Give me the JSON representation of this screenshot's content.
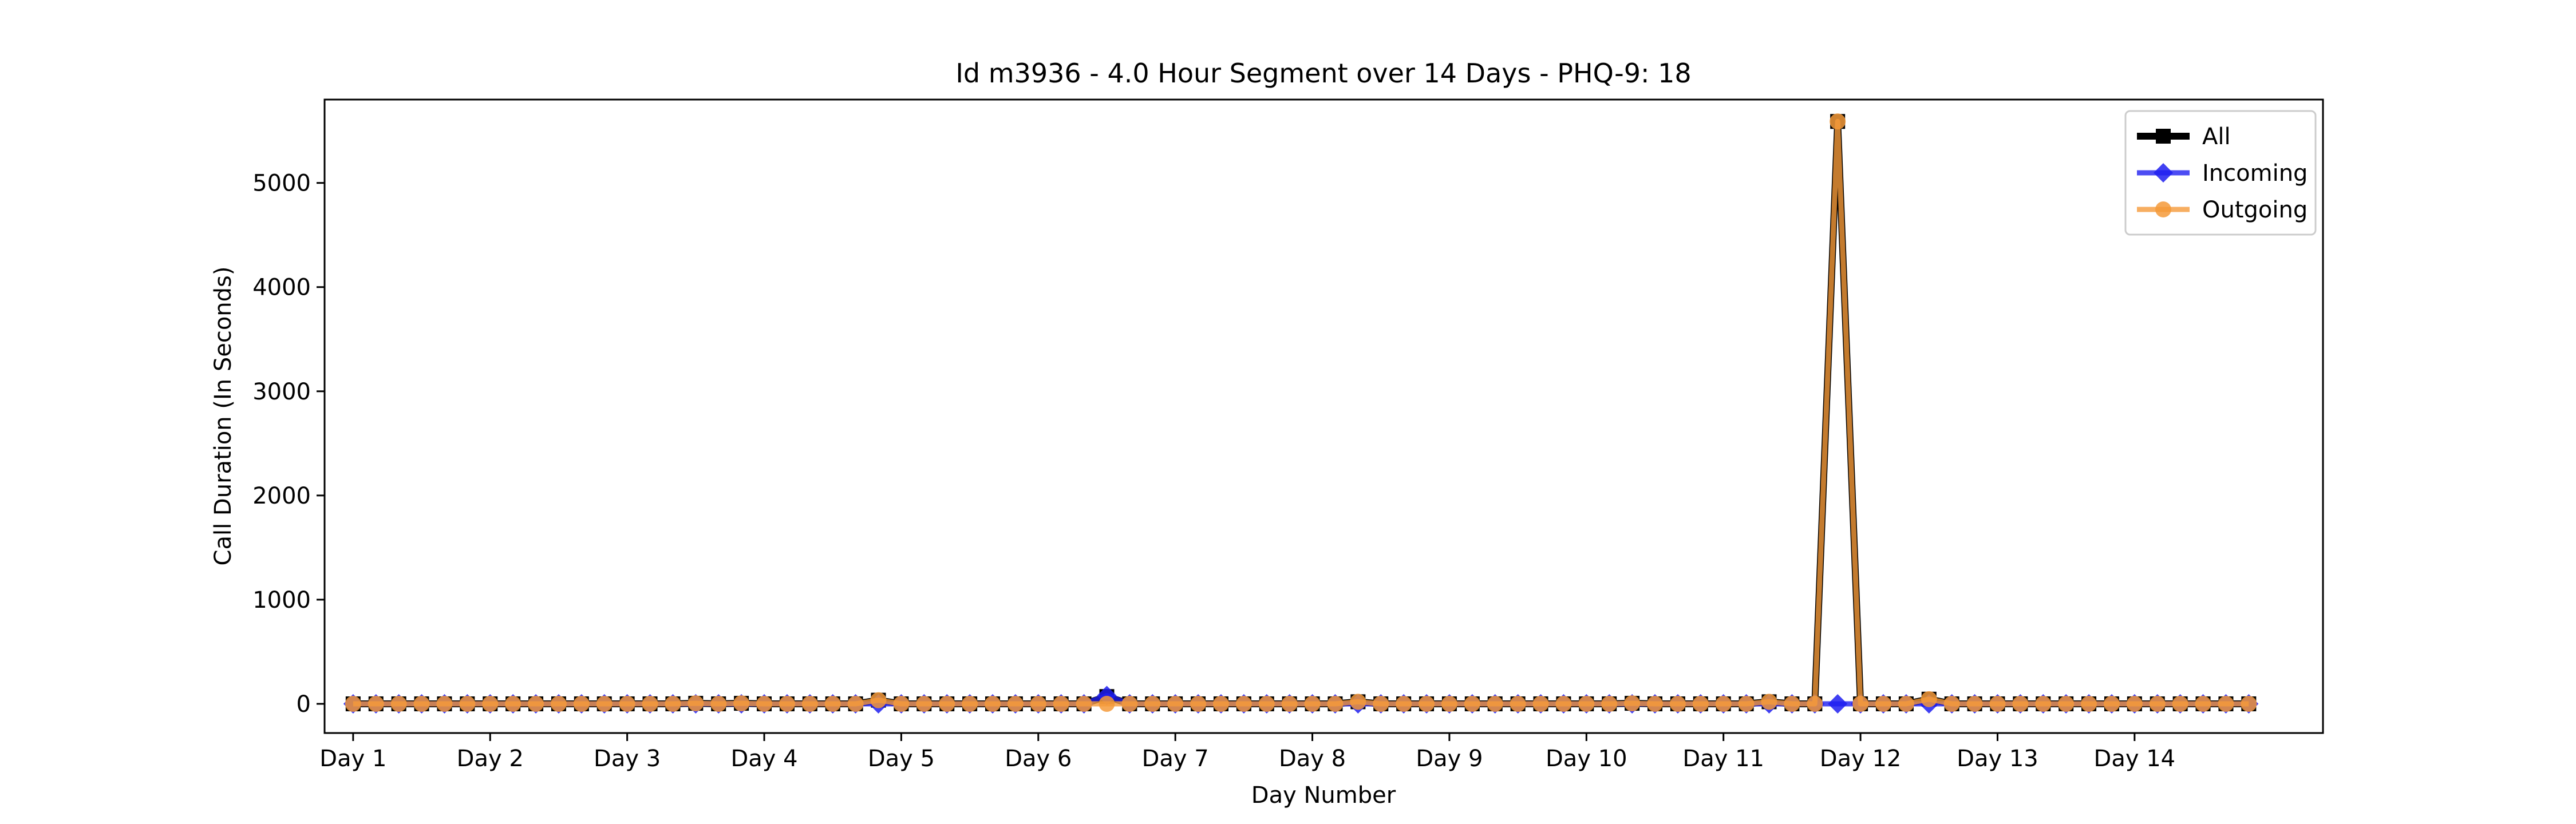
{
  "chart_data": {
    "type": "line",
    "title": "Id m3936 - 4.0 Hour Segment over 14 Days - PHQ-9: 18",
    "xlabel": "Day Number",
    "ylabel": "Call Duration (In Seconds)",
    "xlim": [
      -0.25,
      17.25
    ],
    "ylim": [
      -280,
      5800
    ],
    "yticks": [
      0,
      1000,
      2000,
      3000,
      4000,
      5000
    ],
    "xticks": [
      {
        "pos": 0,
        "label": "Day 1"
      },
      {
        "pos": 1.2,
        "label": "Day 2"
      },
      {
        "pos": 2.4,
        "label": "Day 3"
      },
      {
        "pos": 3.6,
        "label": "Day 4"
      },
      {
        "pos": 4.8,
        "label": "Day 5"
      },
      {
        "pos": 6.0,
        "label": "Day 6"
      },
      {
        "pos": 7.2,
        "label": "Day 7"
      },
      {
        "pos": 8.4,
        "label": "Day 8"
      },
      {
        "pos": 9.6,
        "label": "Day 9"
      },
      {
        "pos": 10.8,
        "label": "Day 10"
      },
      {
        "pos": 12.0,
        "label": "Day 11"
      },
      {
        "pos": 13.2,
        "label": "Day 12"
      },
      {
        "pos": 14.4,
        "label": "Day 13"
      },
      {
        "pos": 15.6,
        "label": "Day 14"
      }
    ],
    "x_step": 0.2,
    "grid": false,
    "legend_position": "top-right",
    "series": [
      {
        "name": "All",
        "color": "#000000",
        "marker": "square",
        "values": [
          0,
          0,
          0,
          0,
          0,
          0,
          0,
          0,
          0,
          0,
          0,
          0,
          0,
          0,
          0,
          5,
          0,
          5,
          0,
          0,
          0,
          0,
          0,
          35,
          0,
          0,
          0,
          0,
          0,
          0,
          0,
          0,
          0,
          70,
          0,
          0,
          0,
          0,
          0,
          0,
          0,
          0,
          0,
          0,
          20,
          0,
          0,
          0,
          0,
          0,
          0,
          0,
          0,
          0,
          0,
          0,
          5,
          0,
          0,
          0,
          0,
          0,
          20,
          0,
          0,
          5590,
          0,
          0,
          0,
          45,
          0,
          0,
          0,
          0,
          0,
          0,
          0,
          0,
          0,
          0,
          0,
          0,
          0,
          0
        ]
      },
      {
        "name": "Incoming",
        "color": "#1f1ff0",
        "marker": "diamond",
        "values": [
          0,
          0,
          0,
          0,
          0,
          0,
          0,
          0,
          0,
          0,
          0,
          0,
          0,
          0,
          0,
          0,
          0,
          0,
          0,
          0,
          0,
          0,
          0,
          0,
          0,
          0,
          0,
          0,
          0,
          0,
          0,
          0,
          0,
          80,
          0,
          0,
          0,
          0,
          0,
          0,
          0,
          0,
          0,
          0,
          0,
          0,
          0,
          0,
          0,
          0,
          0,
          0,
          0,
          0,
          0,
          0,
          0,
          0,
          0,
          0,
          0,
          0,
          0,
          0,
          0,
          0,
          0,
          0,
          0,
          0,
          0,
          0,
          0,
          0,
          0,
          0,
          0,
          0,
          0,
          0,
          0,
          0,
          0,
          0
        ]
      },
      {
        "name": "Outgoing",
        "color": "#f59a3a",
        "marker": "circle",
        "values": [
          0,
          0,
          0,
          0,
          0,
          0,
          0,
          0,
          0,
          0,
          0,
          0,
          0,
          0,
          0,
          5,
          0,
          5,
          0,
          0,
          0,
          0,
          0,
          35,
          0,
          0,
          0,
          0,
          0,
          0,
          0,
          0,
          0,
          0,
          0,
          0,
          0,
          0,
          0,
          0,
          0,
          0,
          0,
          0,
          20,
          0,
          0,
          0,
          0,
          0,
          0,
          0,
          0,
          0,
          0,
          0,
          5,
          0,
          0,
          0,
          0,
          0,
          20,
          0,
          0,
          5590,
          0,
          0,
          0,
          45,
          0,
          0,
          0,
          0,
          0,
          0,
          0,
          0,
          0,
          0,
          0,
          0,
          0,
          0
        ]
      }
    ]
  }
}
